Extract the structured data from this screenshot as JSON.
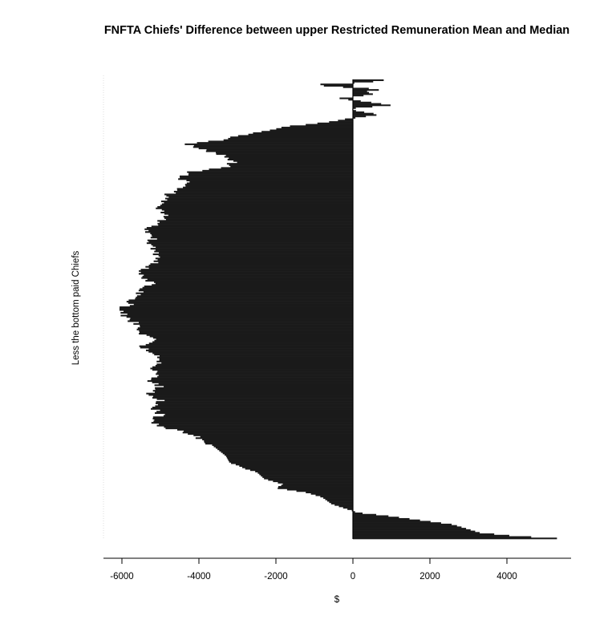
{
  "chart_data": {
    "type": "bar",
    "orientation": "horizontal",
    "title": "FNFTA Chiefs' Difference between upper Restricted Remuneration Mean and Median",
    "xlabel": "$",
    "ylabel": "Less the bottom paid Chiefs",
    "xlim": [
      -6500,
      5500
    ],
    "xticks": [
      -6000,
      -4000,
      -2000,
      0,
      2000,
      4000
    ],
    "xtick_labels": [
      "-6000",
      "-4000",
      "-2000",
      "0",
      "2000",
      "4000"
    ],
    "bar_color": "#1a1a1a",
    "series": [
      {
        "profile": [
          [
            0.0,
            5300
          ],
          [
            0.005,
            4200
          ],
          [
            0.012,
            3300
          ],
          [
            0.03,
            2600
          ],
          [
            0.05,
            800
          ],
          [
            0.056,
            100
          ],
          [
            0.06,
            0
          ],
          [
            0.064,
            -150
          ],
          [
            0.075,
            -550
          ],
          [
            0.09,
            -800
          ],
          [
            0.1,
            -1200
          ],
          [
            0.105,
            -1600
          ],
          [
            0.11,
            -2000
          ],
          [
            0.118,
            -1800
          ],
          [
            0.13,
            -2300
          ],
          [
            0.145,
            -2500
          ],
          [
            0.152,
            -2800
          ],
          [
            0.16,
            -3000
          ],
          [
            0.165,
            -3200
          ],
          [
            0.18,
            -3300
          ],
          [
            0.2,
            -3600
          ],
          [
            0.22,
            -4000
          ],
          [
            0.235,
            -4500
          ],
          [
            0.245,
            -5000
          ],
          [
            0.255,
            -5200
          ],
          [
            0.27,
            -5000
          ],
          [
            0.285,
            -5200
          ],
          [
            0.3,
            -5000
          ],
          [
            0.315,
            -5300
          ],
          [
            0.33,
            -5000
          ],
          [
            0.345,
            -5300
          ],
          [
            0.36,
            -5000
          ],
          [
            0.375,
            -5200
          ],
          [
            0.39,
            -5000
          ],
          [
            0.405,
            -5200
          ],
          [
            0.42,
            -5500
          ],
          [
            0.435,
            -5200
          ],
          [
            0.45,
            -5500
          ],
          [
            0.465,
            -5600
          ],
          [
            0.48,
            -5800
          ],
          [
            0.49,
            -6000
          ],
          [
            0.5,
            -6100
          ],
          [
            0.51,
            -5800
          ],
          [
            0.525,
            -5700
          ],
          [
            0.54,
            -5500
          ],
          [
            0.555,
            -5200
          ],
          [
            0.57,
            -5400
          ],
          [
            0.585,
            -5500
          ],
          [
            0.6,
            -5100
          ],
          [
            0.615,
            -5000
          ],
          [
            0.63,
            -5200
          ],
          [
            0.645,
            -5300
          ],
          [
            0.66,
            -5100
          ],
          [
            0.675,
            -5400
          ],
          [
            0.69,
            -5000
          ],
          [
            0.705,
            -4900
          ],
          [
            0.72,
            -5100
          ],
          [
            0.735,
            -5000
          ],
          [
            0.75,
            -4800
          ],
          [
            0.765,
            -4500
          ],
          [
            0.775,
            -4300
          ],
          [
            0.79,
            -4500
          ],
          [
            0.8,
            -4200
          ],
          [
            0.81,
            -3200
          ],
          [
            0.825,
            -3100
          ],
          [
            0.835,
            -3300
          ],
          [
            0.85,
            -4000
          ],
          [
            0.86,
            -4300
          ],
          [
            0.87,
            -3400
          ],
          [
            0.88,
            -2800
          ],
          [
            0.89,
            -2200
          ],
          [
            0.9,
            -1500
          ],
          [
            0.91,
            -500
          ],
          [
            0.915,
            -200
          ],
          [
            0.92,
            250
          ],
          [
            0.925,
            700
          ],
          [
            0.93,
            300
          ],
          [
            0.935,
            -50
          ],
          [
            0.94,
            100
          ],
          [
            0.945,
            1000
          ],
          [
            0.95,
            600
          ],
          [
            0.955,
            150
          ],
          [
            0.96,
            -400
          ],
          [
            0.965,
            150
          ],
          [
            0.97,
            550
          ],
          [
            0.975,
            300
          ],
          [
            0.98,
            800
          ],
          [
            0.985,
            -300
          ],
          [
            0.99,
            -1100
          ],
          [
            0.995,
            350
          ],
          [
            1.0,
            800
          ]
        ]
      }
    ]
  }
}
